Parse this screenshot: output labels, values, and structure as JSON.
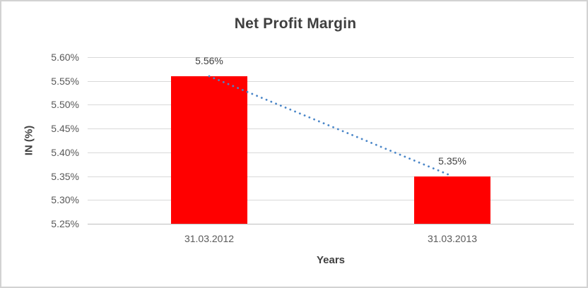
{
  "chart_data": {
    "type": "bar",
    "title": "Net Profit Margin",
    "xlabel": "Years",
    "ylabel": "IN (%)",
    "categories": [
      "31.03.2012",
      "31.03.2013"
    ],
    "series": [
      {
        "name": "Net Profit Margin",
        "values": [
          5.56,
          5.35
        ],
        "color": "#FF0000"
      }
    ],
    "data_labels": [
      "5.56%",
      "5.35%"
    ],
    "y_ticks": [
      "5.60%",
      "5.55%",
      "5.50%",
      "5.45%",
      "5.40%",
      "5.35%",
      "5.30%",
      "5.25%"
    ],
    "ylim": [
      5.25,
      5.6
    ],
    "y_step": 0.05,
    "grid": true,
    "legend": "none",
    "trendline": {
      "type": "linear",
      "style": "dotted",
      "color": "#4A86C8",
      "from_value": 5.56,
      "to_value": 5.35
    },
    "colors": {
      "bar": "#FF0000",
      "gridline": "#D9D9D9",
      "axis_line": "#BFBFBF",
      "tick_text": "#595959",
      "label_text": "#404040",
      "title_text": "#3F3F3F",
      "trendline": "#4A86C8",
      "border": "#D2D2D2"
    }
  }
}
